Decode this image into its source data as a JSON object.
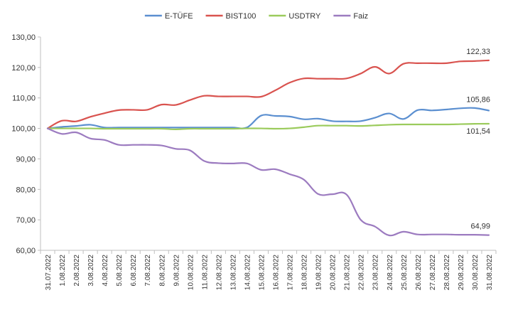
{
  "chart_data": {
    "type": "line",
    "title": "",
    "xlabel": "",
    "ylabel": "",
    "ylim": [
      60,
      130
    ],
    "yticks": [
      60,
      70,
      80,
      90,
      100,
      110,
      120,
      130
    ],
    "ytick_labels": [
      "60,00",
      "70,00",
      "80,00",
      "90,00",
      "100,00",
      "110,00",
      "120,00",
      "130,00"
    ],
    "categories": [
      "31.07.2022",
      "1.08.2022",
      "2.08.2022",
      "3.08.2022",
      "4.08.2022",
      "5.08.2022",
      "6.08.2022",
      "7.08.2022",
      "8.08.2022",
      "9.08.2022",
      "10.08.2022",
      "11.08.2022",
      "12.08.2022",
      "13.08.2022",
      "14.08.2022",
      "15.08.2022",
      "16.08.2022",
      "17.08.2022",
      "18.08.2022",
      "19.08.2022",
      "20.08.2022",
      "21.08.2022",
      "22.08.2022",
      "23.08.2022",
      "24.08.2022",
      "25.08.2022",
      "26.08.2022",
      "27.08.2022",
      "28.08.2022",
      "29.08.2022",
      "30.08.2022",
      "31.08.2022"
    ],
    "legend_position": "top",
    "grid": false,
    "series": [
      {
        "name": "E-TÜFE",
        "color": "#5B8FD0",
        "values": [
          100,
          100.5,
          100.8,
          101.2,
          100.3,
          100.3,
          100.3,
          100.3,
          100.3,
          100.3,
          100.3,
          100.3,
          100.3,
          100.3,
          100.3,
          104.2,
          104.1,
          103.9,
          103,
          103.2,
          102.4,
          102.3,
          102.4,
          103.5,
          104.9,
          103.1,
          106,
          105.9,
          106.2,
          106.6,
          106.7,
          105.86
        ],
        "end_label": "105,86"
      },
      {
        "name": "BIST100",
        "color": "#D9534F",
        "values": [
          100,
          102.5,
          102.3,
          103.8,
          105,
          106,
          106.1,
          106.1,
          107.8,
          107.7,
          109.3,
          110.7,
          110.5,
          110.5,
          110.5,
          110.4,
          112.5,
          115,
          116.4,
          116.3,
          116.3,
          116.4,
          118,
          120.2,
          118,
          121.2,
          121.4,
          121.4,
          121.4,
          122,
          122.1,
          122.33
        ],
        "end_label": "122,33"
      },
      {
        "name": "USDTRY",
        "color": "#9BCB5C",
        "values": [
          100,
          100,
          100,
          100,
          99.9,
          99.9,
          99.9,
          99.9,
          99.9,
          99.7,
          99.9,
          99.9,
          99.9,
          99.9,
          100,
          100,
          99.9,
          100,
          100.4,
          100.9,
          100.9,
          100.9,
          100.8,
          101,
          101.2,
          101.3,
          101.3,
          101.3,
          101.3,
          101.4,
          101.5,
          101.54
        ],
        "end_label": "101,54"
      },
      {
        "name": "Faiz",
        "color": "#9C7BC0",
        "values": [
          100,
          98.2,
          98.7,
          96.7,
          96.2,
          94.6,
          94.6,
          94.6,
          94.4,
          93.3,
          92.8,
          89.3,
          88.6,
          88.5,
          88.5,
          86.4,
          86.6,
          85,
          83.2,
          78.5,
          78.4,
          78.3,
          70,
          67.8,
          64.9,
          66.1,
          65.2,
          65.2,
          65.2,
          65.1,
          65.1,
          64.99
        ],
        "end_label": "64,99"
      }
    ]
  }
}
